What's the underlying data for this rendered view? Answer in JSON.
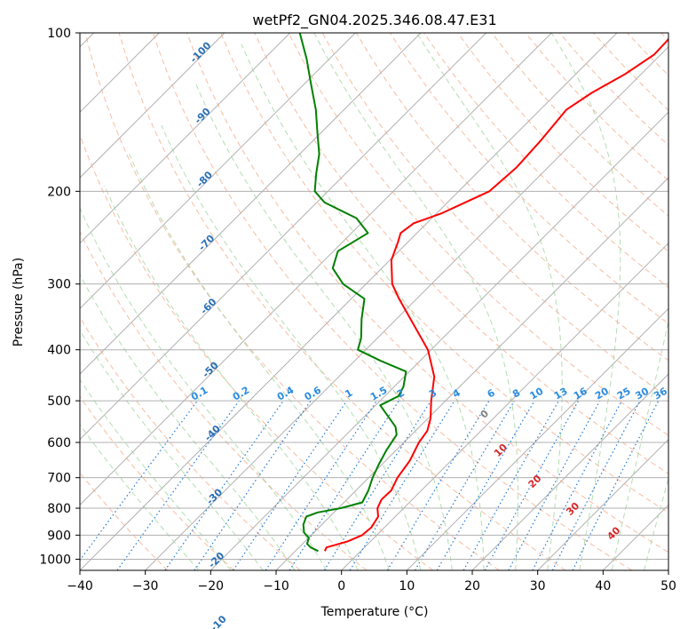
{
  "chart_data": {
    "type": "line",
    "title": "wetPf2_GN04.2025.346.08.47.E31",
    "xlabel": "Temperature (°C)",
    "ylabel": "Pressure (hPa)",
    "xlim": [
      -40,
      50
    ],
    "ylim": [
      1050,
      100
    ],
    "y_scale": "log",
    "skew": true,
    "grid": true,
    "x_ticks": [
      "−40",
      "−30",
      "−20",
      "−10",
      "0",
      "10",
      "20",
      "30",
      "40",
      "50"
    ],
    "x_tick_values": [
      -40,
      -30,
      -20,
      -10,
      0,
      10,
      20,
      30,
      40,
      50
    ],
    "y_ticks": [
      "100",
      "200",
      "300",
      "400",
      "500",
      "600",
      "700",
      "800",
      "900",
      "1000"
    ],
    "y_tick_values": [
      100,
      200,
      300,
      400,
      500,
      600,
      700,
      800,
      900,
      1000
    ],
    "series": [
      {
        "color": "#ff0000",
        "description_key": "temperature",
        "points": [
          {
            "p": 965,
            "t": -5.5
          },
          {
            "p": 950,
            "t": -5.8
          },
          {
            "p": 925,
            "t": -3.5
          },
          {
            "p": 900,
            "t": -2.2
          },
          {
            "p": 870,
            "t": -2.0
          },
          {
            "p": 830,
            "t": -2.6
          },
          {
            "p": 800,
            "t": -4.0
          },
          {
            "p": 770,
            "t": -4.7
          },
          {
            "p": 740,
            "t": -4.6
          },
          {
            "p": 700,
            "t": -5.6
          },
          {
            "p": 650,
            "t": -6.3
          },
          {
            "p": 600,
            "t": -7.7
          },
          {
            "p": 570,
            "t": -8.2
          },
          {
            "p": 540,
            "t": -9.6
          },
          {
            "p": 500,
            "t": -12.2
          },
          {
            "p": 450,
            "t": -15.4
          },
          {
            "p": 400,
            "t": -20.5
          },
          {
            "p": 350,
            "t": -27.8
          },
          {
            "p": 320,
            "t": -32.7
          },
          {
            "p": 300,
            "t": -36.0
          },
          {
            "p": 270,
            "t": -39.8
          },
          {
            "p": 250,
            "t": -41.5
          },
          {
            "p": 240,
            "t": -42.5
          },
          {
            "p": 230,
            "t": -42.0
          },
          {
            "p": 220,
            "t": -39.2
          },
          {
            "p": 200,
            "t": -35.3
          },
          {
            "p": 180,
            "t": -34.8
          },
          {
            "p": 160,
            "t": -35.2
          },
          {
            "p": 140,
            "t": -36.0
          },
          {
            "p": 130,
            "t": -34.7
          },
          {
            "p": 120,
            "t": -32.5
          },
          {
            "p": 110,
            "t": -31.0
          },
          {
            "p": 100,
            "t": -31.2
          }
        ]
      },
      {
        "color": "#008000",
        "description_key": "dewpoint",
        "points": [
          {
            "p": 965,
            "t": -6.5
          },
          {
            "p": 950,
            "t": -8.2
          },
          {
            "p": 935,
            "t": -9.3
          },
          {
            "p": 910,
            "t": -10.0
          },
          {
            "p": 890,
            "t": -11.5
          },
          {
            "p": 860,
            "t": -12.8
          },
          {
            "p": 830,
            "t": -13.6
          },
          {
            "p": 815,
            "t": -12.5
          },
          {
            "p": 800,
            "t": -9.6
          },
          {
            "p": 780,
            "t": -7.2
          },
          {
            "p": 740,
            "t": -8.1
          },
          {
            "p": 700,
            "t": -9.4
          },
          {
            "p": 660,
            "t": -10.5
          },
          {
            "p": 620,
            "t": -11.5
          },
          {
            "p": 580,
            "t": -12.3
          },
          {
            "p": 560,
            "t": -13.7
          },
          {
            "p": 530,
            "t": -17.0
          },
          {
            "p": 510,
            "t": -19.3
          },
          {
            "p": 490,
            "t": -17.9
          },
          {
            "p": 470,
            "t": -18.6
          },
          {
            "p": 440,
            "t": -20.5
          },
          {
            "p": 420,
            "t": -26.0
          },
          {
            "p": 400,
            "t": -31.2
          },
          {
            "p": 380,
            "t": -32.5
          },
          {
            "p": 350,
            "t": -35.3
          },
          {
            "p": 320,
            "t": -38.0
          },
          {
            "p": 300,
            "t": -43.5
          },
          {
            "p": 280,
            "t": -47.5
          },
          {
            "p": 260,
            "t": -49.3
          },
          {
            "p": 240,
            "t": -47.5
          },
          {
            "p": 225,
            "t": -51.5
          },
          {
            "p": 210,
            "t": -58.8
          },
          {
            "p": 200,
            "t": -62.0
          },
          {
            "p": 185,
            "t": -64.5
          },
          {
            "p": 170,
            "t": -67.0
          },
          {
            "p": 155,
            "t": -70.5
          },
          {
            "p": 140,
            "t": -74.3
          },
          {
            "p": 125,
            "t": -79.0
          },
          {
            "p": 112,
            "t": -83.5
          },
          {
            "p": 100,
            "t": -88.5
          }
        ]
      }
    ],
    "mixing_ratio_labels": [
      "0.1",
      "0.2",
      "0.4",
      "0.6",
      "1",
      "1.5",
      "2",
      "3",
      "4",
      "6",
      "8",
      "10",
      "13",
      "16",
      "20",
      "25",
      "30",
      "36"
    ],
    "mixing_ratio_values": [
      0.1,
      0.2,
      0.4,
      0.6,
      1,
      1.5,
      2,
      3,
      4,
      6,
      8,
      10,
      13,
      16,
      20,
      25,
      30,
      36
    ],
    "dry_adiabat_labels": [
      "-100",
      "-90",
      "-80",
      "-70",
      "-60",
      "-50",
      "-40",
      "-30",
      "-20",
      "-10"
    ],
    "moist_adiabat_labels": [
      "0",
      "10",
      "20",
      "30",
      "40"
    ],
    "colors": {
      "isotherm_grid": "#b0b0b0",
      "dry_adiabat": "#f4a582",
      "moist_adiabat": "#9fd49f",
      "mixing_ratio": "#1f78d6",
      "dry_label": "#2a6fb5",
      "moist_label_zero": "#808080",
      "moist_label": "#d62728",
      "mixing_label": "#2b8be0"
    }
  }
}
